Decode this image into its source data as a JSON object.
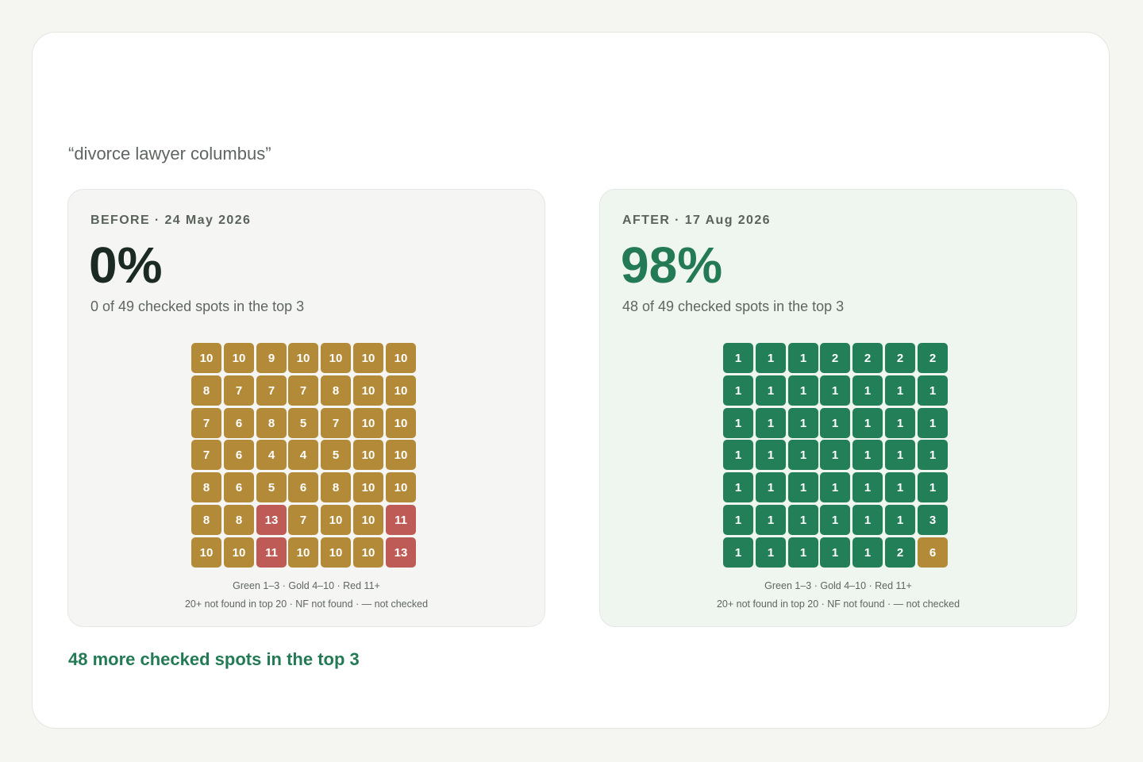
{
  "query": "“divorce lawyer columbus”",
  "colors": {
    "green": "#227f57",
    "gold": "#b38a38",
    "red": "#bf5b57",
    "accent": "#237a55"
  },
  "before": {
    "label": "BEFORE · 24 May 2026",
    "percent": "0%",
    "subtitle": "0 of 49 checked spots in the top 3",
    "grid": [
      [
        10,
        10,
        9,
        10,
        10,
        10,
        10
      ],
      [
        8,
        7,
        7,
        7,
        8,
        10,
        10
      ],
      [
        7,
        6,
        8,
        5,
        7,
        10,
        10
      ],
      [
        7,
        6,
        4,
        4,
        5,
        10,
        10
      ],
      [
        8,
        6,
        5,
        6,
        8,
        10,
        10
      ],
      [
        8,
        8,
        13,
        7,
        10,
        10,
        11
      ],
      [
        10,
        10,
        11,
        10,
        10,
        10,
        13
      ]
    ],
    "legend_line1": "Green 1–3 · Gold 4–10 · Red 11+",
    "legend_line2": "20+ not found in top 20 · NF not found · — not checked"
  },
  "after": {
    "label": "AFTER · 17 Aug 2026",
    "percent": "98%",
    "subtitle": "48 of 49 checked spots in the top 3",
    "grid": [
      [
        1,
        1,
        1,
        2,
        2,
        2,
        2
      ],
      [
        1,
        1,
        1,
        1,
        1,
        1,
        1
      ],
      [
        1,
        1,
        1,
        1,
        1,
        1,
        1
      ],
      [
        1,
        1,
        1,
        1,
        1,
        1,
        1
      ],
      [
        1,
        1,
        1,
        1,
        1,
        1,
        1
      ],
      [
        1,
        1,
        1,
        1,
        1,
        1,
        3
      ],
      [
        1,
        1,
        1,
        1,
        1,
        2,
        6
      ]
    ],
    "legend_line1": "Green 1–3 · Gold 4–10 · Red 11+",
    "legend_line2": "20+ not found in top 20 · NF not found · — not checked"
  },
  "summary": "48 more checked spots in the top 3"
}
